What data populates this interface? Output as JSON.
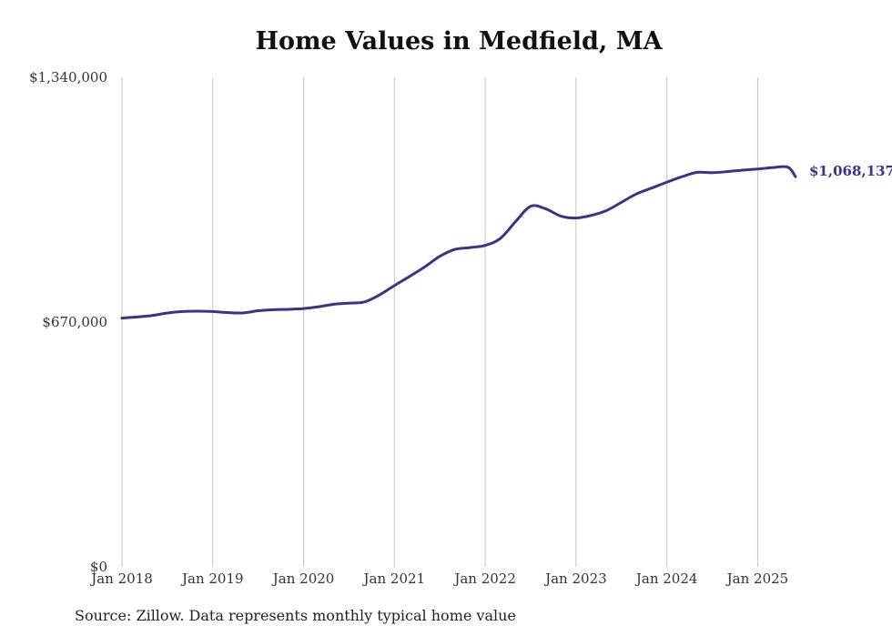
{
  "chart_data": {
    "type": "line",
    "title": "Home Values in Medfield, MA",
    "xlabel": "",
    "ylabel": "",
    "y_ticks": [
      {
        "value": 0,
        "label": "$0"
      },
      {
        "value": 670000,
        "label": "$670,000"
      },
      {
        "value": 1340000,
        "label": "$1,340,000"
      }
    ],
    "ylim": [
      0,
      1340000
    ],
    "x_ticks": [
      "Jan 2018",
      "Jan 2019",
      "Jan 2020",
      "Jan 2021",
      "Jan 2022",
      "Jan 2023",
      "Jan 2024",
      "Jan 2025"
    ],
    "xlim": [
      "2018-01",
      "2025-06"
    ],
    "grid": "vertical",
    "line_color": "#3b3289",
    "series": [
      {
        "x": [
          "2018-01",
          "2018-03",
          "2018-05",
          "2018-07",
          "2018-09",
          "2018-11",
          "2019-01",
          "2019-03",
          "2019-05",
          "2019-07",
          "2019-09",
          "2019-11",
          "2020-01",
          "2020-03",
          "2020-05",
          "2020-07",
          "2020-09",
          "2020-11",
          "2021-01",
          "2021-03",
          "2021-05",
          "2021-07",
          "2021-09",
          "2021-11",
          "2022-01",
          "2022-03",
          "2022-05",
          "2022-07",
          "2022-09",
          "2022-11",
          "2023-01",
          "2023-03",
          "2023-05",
          "2023-07",
          "2023-09",
          "2023-11",
          "2024-01",
          "2024-03",
          "2024-05",
          "2024-07",
          "2024-09",
          "2024-11",
          "2025-01",
          "2025-03",
          "2025-05",
          "2025-06"
        ],
        "y": [
          681000,
          684000,
          688000,
          695000,
          699000,
          700000,
          699000,
          696000,
          695000,
          701000,
          704000,
          705000,
          707000,
          712000,
          719000,
          722000,
          725000,
          744000,
          770000,
          795000,
          821000,
          850000,
          869000,
          874000,
          880000,
          899000,
          945000,
          987000,
          980000,
          960000,
          955000,
          962000,
          975000,
          998000,
          1021000,
          1037000,
          1053000,
          1068000,
          1080000,
          1079000,
          1082000,
          1086000,
          1089000,
          1093000,
          1094000,
          1068137
        ]
      }
    ],
    "annotations": [
      {
        "text": "$1,068,137",
        "x": "2025-06",
        "y": 1068137
      }
    ]
  },
  "source_note": "Source: Zillow. Data represents monthly typical home value"
}
